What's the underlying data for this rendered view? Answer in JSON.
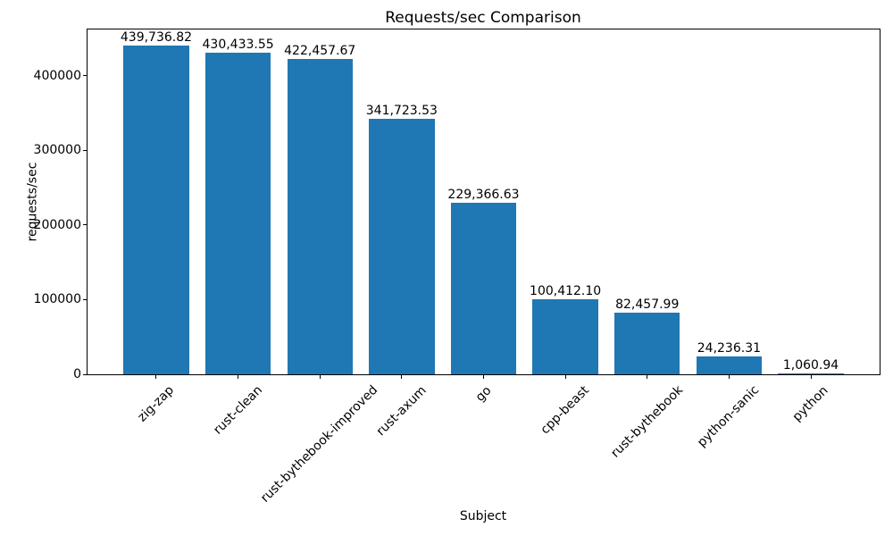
{
  "chart_data": {
    "type": "bar",
    "title": "Requests/sec Comparison",
    "xlabel": "Subject",
    "ylabel": "requests/sec",
    "categories": [
      "zig-zap",
      "rust-clean",
      "rust-bythebook-improved",
      "rust-axum",
      "go",
      "cpp-beast",
      "rust-bythebook",
      "python-sanic",
      "python"
    ],
    "values": [
      439736.82,
      430433.55,
      422457.67,
      341723.53,
      229366.63,
      100412.1,
      82457.99,
      24236.31,
      1060.94
    ],
    "value_labels": [
      "439,736.82",
      "430,433.55",
      "422,457.67",
      "341,723.53",
      "229,366.63",
      "100,412.10",
      "82,457.99",
      "24,236.31",
      "1,060.94"
    ],
    "bar_color": "#1f77b4",
    "ylim": [
      0,
      461724
    ],
    "yticks": [
      0,
      100000,
      200000,
      300000,
      400000
    ],
    "ytick_labels": [
      "0",
      "100000",
      "200000",
      "300000",
      "400000"
    ],
    "xtick_rotation": 45,
    "grid": false,
    "legend": null
  }
}
